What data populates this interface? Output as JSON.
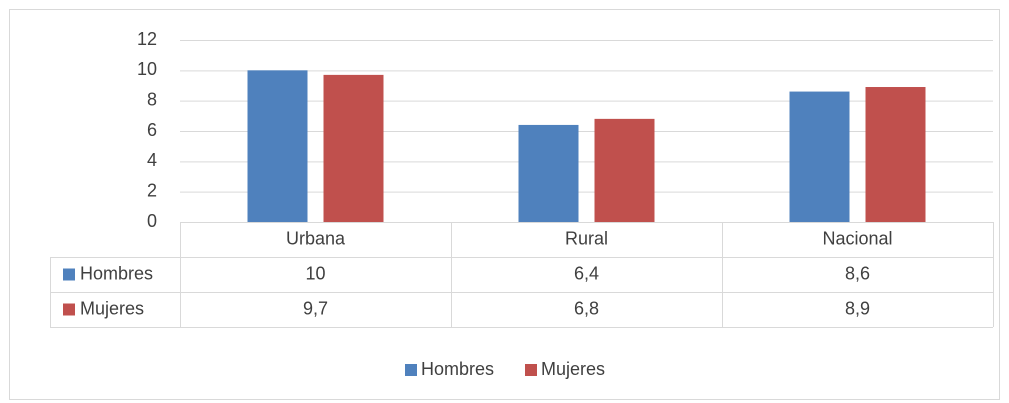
{
  "chart_data": {
    "type": "bar",
    "categories": [
      "Urbana",
      "Rural",
      "Nacional"
    ],
    "series": [
      {
        "name": "Hombres",
        "color": "#4f81bd",
        "values": [
          10,
          6.4,
          8.6
        ],
        "value_labels": [
          "10",
          "6,4",
          "8,6"
        ]
      },
      {
        "name": "Mujeres",
        "color": "#c0504d",
        "values": [
          9.7,
          6.8,
          8.9
        ],
        "value_labels": [
          "9,7",
          "6,8",
          "8,9"
        ]
      }
    ],
    "ylim": [
      0,
      12
    ],
    "yticks": [
      0,
      2,
      4,
      6,
      8,
      10,
      12
    ],
    "grid": true,
    "legend": "bottom"
  }
}
